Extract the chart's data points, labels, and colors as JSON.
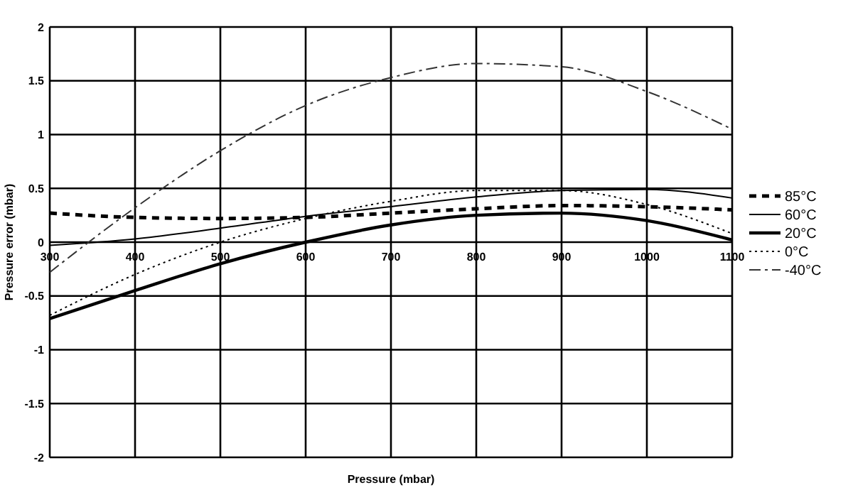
{
  "chart_data": {
    "type": "line",
    "xlabel": "Pressure (mbar)",
    "ylabel": "Pressure error (mbar)",
    "x": [
      300,
      400,
      500,
      600,
      700,
      800,
      900,
      1000,
      1100
    ],
    "series": [
      {
        "name": "85°C",
        "color": "#000000",
        "line_style": "dashed",
        "values": [
          0.27,
          0.23,
          0.22,
          0.23,
          0.27,
          0.31,
          0.34,
          0.33,
          0.3
        ]
      },
      {
        "name": "60°C",
        "color": "#000000",
        "line_style": "solid",
        "values": [
          -0.03,
          0.03,
          0.13,
          0.24,
          0.33,
          0.42,
          0.48,
          0.49,
          0.41
        ]
      },
      {
        "name": "20°C",
        "color": "#000000",
        "line_style": "solid",
        "values": [
          -0.71,
          -0.45,
          -0.2,
          0.0,
          0.16,
          0.25,
          0.27,
          0.2,
          0.02
        ]
      },
      {
        "name": "0°C",
        "color": "#000000",
        "line_style": "dotted",
        "values": [
          -0.68,
          -0.3,
          0.0,
          0.22,
          0.38,
          0.48,
          0.48,
          0.35,
          0.08
        ]
      },
      {
        "name": "-40°C",
        "color": "#333333",
        "line_style": "dashdot",
        "values": [
          -0.28,
          0.32,
          0.85,
          1.27,
          1.53,
          1.66,
          1.63,
          1.4,
          1.05
        ]
      }
    ],
    "xlim": [
      300,
      1100
    ],
    "xticks": [
      300,
      400,
      500,
      600,
      700,
      800,
      900,
      1000,
      1100
    ],
    "ylim": [
      -2,
      2
    ],
    "yticks": [
      -2,
      -1.5,
      -1,
      -0.5,
      0,
      0.5,
      1,
      1.5,
      2
    ],
    "grid": true,
    "legend": "right",
    "marker": "none"
  }
}
